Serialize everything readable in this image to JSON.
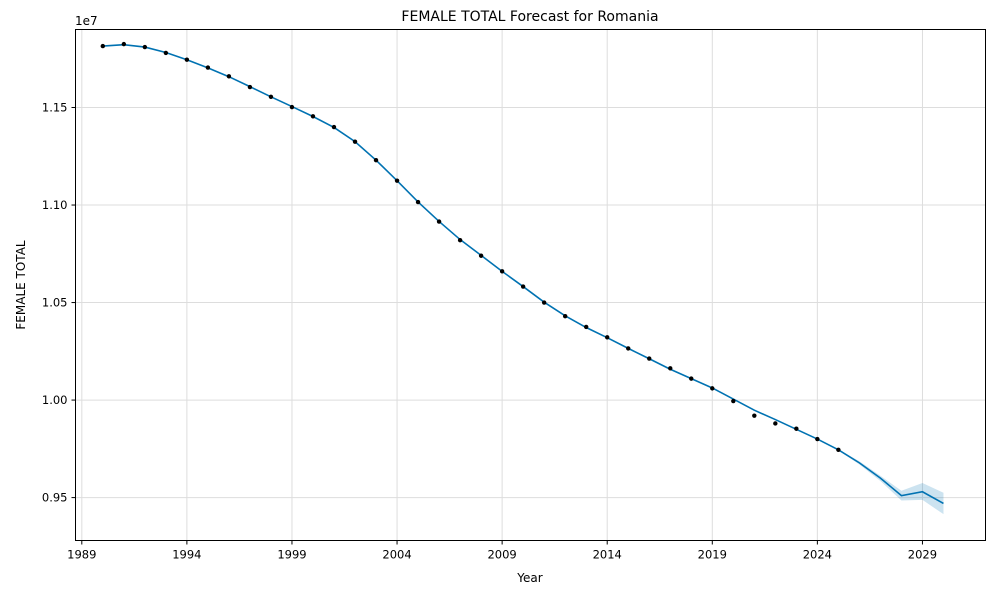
{
  "chart_data": {
    "type": "line",
    "title": "FEMALE TOTAL Forecast for Romania",
    "xlabel": "Year",
    "ylabel": "FEMALE TOTAL",
    "y_offset_label": "1e7",
    "xlim": [
      1988.7,
      2032.0
    ],
    "ylim": [
      9.28,
      11.9
    ],
    "y_scale_factor": 10000000,
    "grid": true,
    "x_ticks": [
      {
        "value": 1989,
        "label": "1989"
      },
      {
        "value": 1994,
        "label": "1994"
      },
      {
        "value": 1999,
        "label": "1999"
      },
      {
        "value": 2004,
        "label": "2004"
      },
      {
        "value": 2009,
        "label": "2009"
      },
      {
        "value": 2014,
        "label": "2014"
      },
      {
        "value": 2019,
        "label": "2019"
      },
      {
        "value": 2024,
        "label": "2024"
      },
      {
        "value": 2029,
        "label": "2029"
      }
    ],
    "y_ticks": [
      {
        "value": 9.5,
        "label": "0.95"
      },
      {
        "value": 10.0,
        "label": "1.00"
      },
      {
        "value": 10.5,
        "label": "1.05"
      },
      {
        "value": 11.0,
        "label": "1.10"
      },
      {
        "value": 11.5,
        "label": "1.15"
      }
    ],
    "colors": {
      "forecast_line": "#0072b2",
      "uncertainty_band": "#0072b2",
      "observed_points": "#000000",
      "grid": "#dddddd"
    },
    "series": [
      {
        "kind": "observed_points",
        "x": [
          1990,
          1991,
          1992,
          1993,
          1994,
          1995,
          1996,
          1997,
          1998,
          1999,
          2000,
          2001,
          2002,
          2003,
          2004,
          2005,
          2006,
          2007,
          2008,
          2009,
          2010,
          2011,
          2012,
          2013,
          2014,
          2015,
          2016,
          2017,
          2018,
          2019,
          2020,
          2021,
          2022,
          2023,
          2024,
          2025
        ],
        "values": [
          11.815,
          11.825,
          11.81,
          11.78,
          11.745,
          11.705,
          11.66,
          11.605,
          11.555,
          11.502,
          11.455,
          11.4,
          11.325,
          11.23,
          11.125,
          11.015,
          10.915,
          10.82,
          10.74,
          10.66,
          10.582,
          10.5,
          10.43,
          10.375,
          10.322,
          10.265,
          10.213,
          10.163,
          10.11,
          10.06,
          9.995,
          9.92,
          9.88,
          9.853,
          9.8,
          9.745
        ]
      },
      {
        "kind": "forecast_line",
        "x": [
          1990,
          1991,
          1992,
          1993,
          1994,
          1995,
          1996,
          1997,
          1998,
          1999,
          2000,
          2001,
          2002,
          2003,
          2004,
          2005,
          2006,
          2007,
          2008,
          2009,
          2010,
          2011,
          2012,
          2013,
          2014,
          2015,
          2016,
          2017,
          2018,
          2019,
          2020,
          2021,
          2022,
          2023,
          2024,
          2025,
          2026,
          2027,
          2028,
          2029,
          2030
        ],
        "values": [
          11.815,
          11.822,
          11.81,
          11.782,
          11.745,
          11.703,
          11.658,
          11.607,
          11.555,
          11.505,
          11.454,
          11.398,
          11.325,
          11.23,
          11.125,
          11.016,
          10.916,
          10.823,
          10.742,
          10.66,
          10.582,
          10.502,
          10.432,
          10.372,
          10.32,
          10.265,
          10.212,
          10.158,
          10.11,
          10.062,
          10.005,
          9.948,
          9.9,
          9.85,
          9.8,
          9.745,
          9.678,
          9.6,
          9.51,
          9.53,
          9.47
        ],
        "lower": [
          11.815,
          11.822,
          11.81,
          11.782,
          11.745,
          11.703,
          11.658,
          11.607,
          11.555,
          11.505,
          11.454,
          11.398,
          11.325,
          11.23,
          11.125,
          11.016,
          10.916,
          10.823,
          10.742,
          10.66,
          10.582,
          10.502,
          10.432,
          10.372,
          10.32,
          10.265,
          10.212,
          10.158,
          10.11,
          10.062,
          10.005,
          9.948,
          9.9,
          9.85,
          9.8,
          9.742,
          9.67,
          9.585,
          9.485,
          9.488,
          9.415
        ],
        "upper": [
          11.815,
          11.822,
          11.81,
          11.782,
          11.745,
          11.703,
          11.658,
          11.607,
          11.555,
          11.505,
          11.454,
          11.398,
          11.325,
          11.23,
          11.125,
          11.016,
          10.916,
          10.823,
          10.742,
          10.66,
          10.582,
          10.502,
          10.432,
          10.372,
          10.32,
          10.265,
          10.212,
          10.158,
          10.11,
          10.062,
          10.005,
          9.948,
          9.9,
          9.85,
          9.8,
          9.748,
          9.686,
          9.612,
          9.535,
          9.575,
          9.525
        ]
      }
    ]
  }
}
